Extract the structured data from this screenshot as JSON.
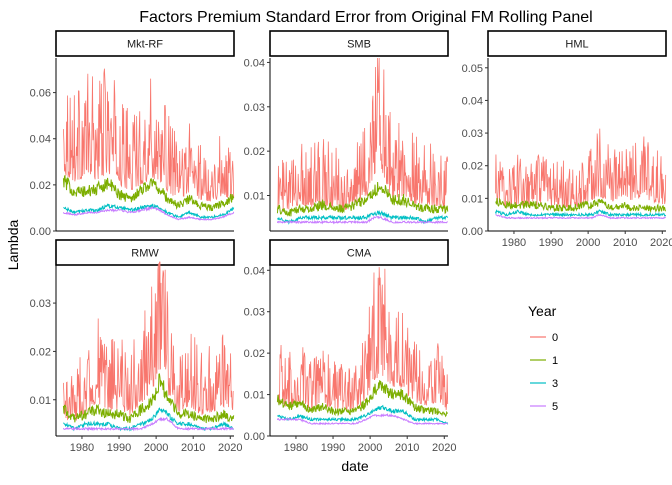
{
  "chart_data": {
    "type": "line",
    "title": "Factors Premium Standard Error from Original FM Rolling Panel",
    "xlabel": "date",
    "ylabel": "Lambda",
    "xlim": [
      1973,
      2021
    ],
    "x_ticks": [
      "1980",
      "1990",
      "2000",
      "2010",
      "2020"
    ],
    "grid": false,
    "legend": {
      "title": "Year",
      "position": "right",
      "entries": [
        "0",
        "1",
        "3",
        "5"
      ],
      "colors": [
        "#F8766D",
        "#7CAE00",
        "#00BFC4",
        "#C77CFF"
      ]
    },
    "panels": [
      {
        "name": "Mkt-RF",
        "ylim": [
          0,
          0.075
        ],
        "y_ticks": [
          "0.00",
          "0.02",
          "0.04",
          "0.06"
        ],
        "series": [
          {
            "name": "0",
            "x": [
              1975,
              1978,
              1981,
              1984,
              1987,
              1990,
              1993,
              1996,
              1999,
              2001,
              2003,
              2006,
              2009,
              2012,
              2015,
              2018,
              2021
            ],
            "y": [
              0.037,
              0.032,
              0.035,
              0.033,
              0.038,
              0.03,
              0.026,
              0.03,
              0.034,
              0.032,
              0.026,
              0.02,
              0.025,
              0.02,
              0.019,
              0.022,
              0.021
            ]
          },
          {
            "name": "1",
            "x": [
              1975,
              1978,
              1981,
              1984,
              1987,
              1990,
              1993,
              1996,
              1999,
              2001,
              2003,
              2006,
              2009,
              2012,
              2015,
              2018,
              2021
            ],
            "y": [
              0.022,
              0.017,
              0.017,
              0.018,
              0.021,
              0.016,
              0.014,
              0.018,
              0.021,
              0.018,
              0.014,
              0.011,
              0.014,
              0.011,
              0.01,
              0.012,
              0.015
            ]
          },
          {
            "name": "3",
            "x": [
              1975,
              1978,
              1981,
              1984,
              1987,
              1990,
              1993,
              1996,
              1999,
              2001,
              2003,
              2006,
              2009,
              2012,
              2015,
              2018,
              2021
            ],
            "y": [
              0.01,
              0.008,
              0.009,
              0.009,
              0.011,
              0.01,
              0.009,
              0.01,
              0.011,
              0.01,
              0.008,
              0.006,
              0.008,
              0.006,
              0.006,
              0.007,
              0.01
            ]
          },
          {
            "name": "5",
            "x": [
              1975,
              1978,
              1981,
              1984,
              1987,
              1990,
              1993,
              1996,
              1999,
              2001,
              2003,
              2006,
              2009,
              2012,
              2015,
              2018,
              2021
            ],
            "y": [
              0.008,
              0.007,
              0.008,
              0.008,
              0.009,
              0.009,
              0.008,
              0.009,
              0.01,
              0.009,
              0.007,
              0.005,
              0.006,
              0.005,
              0.005,
              0.006,
              0.008
            ]
          }
        ]
      },
      {
        "name": "SMB",
        "ylim": [
          0.002,
          0.041
        ],
        "y_ticks": [
          "0.01",
          "0.02",
          "0.03",
          "0.04"
        ],
        "series": [
          {
            "name": "0",
            "x": [
              1975,
              1978,
              1981,
              1984,
              1987,
              1990,
              1993,
              1996,
              1999,
              2001,
              2003,
              2006,
              2009,
              2012,
              2015,
              2018,
              2021
            ],
            "y": [
              0.01,
              0.009,
              0.012,
              0.011,
              0.012,
              0.011,
              0.01,
              0.011,
              0.014,
              0.022,
              0.024,
              0.013,
              0.015,
              0.012,
              0.012,
              0.011,
              0.01
            ]
          },
          {
            "name": "1",
            "x": [
              1975,
              1978,
              1981,
              1984,
              1987,
              1990,
              1993,
              1996,
              1999,
              2001,
              2003,
              2006,
              2009,
              2012,
              2015,
              2018,
              2021
            ],
            "y": [
              0.007,
              0.006,
              0.007,
              0.007,
              0.008,
              0.007,
              0.007,
              0.008,
              0.009,
              0.011,
              0.012,
              0.009,
              0.009,
              0.008,
              0.007,
              0.007,
              0.007
            ]
          },
          {
            "name": "3",
            "x": [
              1975,
              1978,
              1981,
              1984,
              1987,
              1990,
              1993,
              1996,
              1999,
              2001,
              2003,
              2006,
              2009,
              2012,
              2015,
              2018,
              2021
            ],
            "y": [
              0.005,
              0.004,
              0.005,
              0.005,
              0.005,
              0.005,
              0.005,
              0.005,
              0.005,
              0.006,
              0.006,
              0.005,
              0.005,
              0.005,
              0.004,
              0.005,
              0.005
            ]
          },
          {
            "name": "5",
            "x": [
              1975,
              1978,
              1981,
              1984,
              1987,
              1990,
              1993,
              1996,
              1999,
              2001,
              2003,
              2006,
              2009,
              2012,
              2015,
              2018,
              2021
            ],
            "y": [
              0.004,
              0.004,
              0.004,
              0.004,
              0.004,
              0.004,
              0.004,
              0.004,
              0.004,
              0.005,
              0.005,
              0.004,
              0.004,
              0.004,
              0.004,
              0.004,
              0.004
            ]
          }
        ]
      },
      {
        "name": "HML",
        "ylim": [
          0,
          0.053
        ],
        "y_ticks": [
          "0.00",
          "0.01",
          "0.02",
          "0.03",
          "0.04",
          "0.05"
        ],
        "series": [
          {
            "name": "0",
            "x": [
              1975,
              1978,
              1981,
              1984,
              1987,
              1990,
              1993,
              1996,
              1999,
              2001,
              2003,
              2006,
              2009,
              2012,
              2015,
              2018,
              2021
            ],
            "y": [
              0.013,
              0.011,
              0.012,
              0.011,
              0.012,
              0.011,
              0.011,
              0.01,
              0.012,
              0.014,
              0.016,
              0.013,
              0.015,
              0.014,
              0.015,
              0.013,
              0.012
            ]
          },
          {
            "name": "1",
            "x": [
              1975,
              1978,
              1981,
              1984,
              1987,
              1990,
              1993,
              1996,
              1999,
              2001,
              2003,
              2006,
              2009,
              2012,
              2015,
              2018,
              2021
            ],
            "y": [
              0.009,
              0.008,
              0.008,
              0.008,
              0.008,
              0.007,
              0.007,
              0.007,
              0.008,
              0.008,
              0.009,
              0.007,
              0.008,
              0.007,
              0.007,
              0.007,
              0.007
            ]
          },
          {
            "name": "3",
            "x": [
              1975,
              1978,
              1981,
              1984,
              1987,
              1990,
              1993,
              1996,
              1999,
              2001,
              2003,
              2006,
              2009,
              2012,
              2015,
              2018,
              2021
            ],
            "y": [
              0.006,
              0.005,
              0.006,
              0.005,
              0.005,
              0.005,
              0.005,
              0.005,
              0.005,
              0.005,
              0.006,
              0.005,
              0.005,
              0.005,
              0.005,
              0.005,
              0.005
            ]
          },
          {
            "name": "5",
            "x": [
              1975,
              1978,
              1981,
              1984,
              1987,
              1990,
              1993,
              1996,
              1999,
              2001,
              2003,
              2006,
              2009,
              2012,
              2015,
              2018,
              2021
            ],
            "y": [
              0.005,
              0.004,
              0.004,
              0.004,
              0.004,
              0.004,
              0.004,
              0.004,
              0.004,
              0.004,
              0.005,
              0.004,
              0.004,
              0.004,
              0.004,
              0.004,
              0.004
            ]
          }
        ]
      },
      {
        "name": "RMW",
        "ylim": [
          0.0025,
          0.0385
        ],
        "y_ticks": [
          "0.01",
          "0.02",
          "0.03"
        ],
        "series": [
          {
            "name": "0",
            "x": [
              1975,
              1978,
              1981,
              1984,
              1987,
              1990,
              1993,
              1996,
              1999,
              2001,
              2003,
              2006,
              2009,
              2012,
              2015,
              2018,
              2021
            ],
            "y": [
              0.009,
              0.008,
              0.011,
              0.014,
              0.011,
              0.012,
              0.01,
              0.014,
              0.017,
              0.025,
              0.017,
              0.011,
              0.013,
              0.01,
              0.011,
              0.013,
              0.01
            ]
          },
          {
            "name": "1",
            "x": [
              1975,
              1978,
              1981,
              1984,
              1987,
              1990,
              1993,
              1996,
              1999,
              2001,
              2003,
              2006,
              2009,
              2012,
              2015,
              2018,
              2021
            ],
            "y": [
              0.008,
              0.006,
              0.007,
              0.008,
              0.007,
              0.007,
              0.006,
              0.008,
              0.01,
              0.014,
              0.011,
              0.007,
              0.007,
              0.006,
              0.006,
              0.007,
              0.006
            ]
          },
          {
            "name": "3",
            "x": [
              1975,
              1978,
              1981,
              1984,
              1987,
              1990,
              1993,
              1996,
              1999,
              2001,
              2003,
              2006,
              2009,
              2012,
              2015,
              2018,
              2021
            ],
            "y": [
              0.005,
              0.004,
              0.005,
              0.005,
              0.005,
              0.004,
              0.004,
              0.005,
              0.006,
              0.008,
              0.007,
              0.005,
              0.005,
              0.004,
              0.004,
              0.005,
              0.004
            ]
          },
          {
            "name": "5",
            "x": [
              1975,
              1978,
              1981,
              1984,
              1987,
              1990,
              1993,
              1996,
              1999,
              2001,
              2003,
              2006,
              2009,
              2012,
              2015,
              2018,
              2021
            ],
            "y": [
              0.004,
              0.004,
              0.004,
              0.004,
              0.004,
              0.004,
              0.004,
              0.004,
              0.005,
              0.006,
              0.006,
              0.004,
              0.004,
              0.004,
              0.004,
              0.004,
              0.004
            ]
          }
        ]
      },
      {
        "name": "CMA",
        "ylim": [
          0,
          0.042
        ],
        "y_ticks": [
          "0.00",
          "0.01",
          "0.02",
          "0.03",
          "0.04"
        ],
        "series": [
          {
            "name": "0",
            "x": [
              1975,
              1978,
              1981,
              1984,
              1987,
              1990,
              1993,
              1996,
              1999,
              2001,
              2003,
              2006,
              2009,
              2012,
              2015,
              2018,
              2021
            ],
            "y": [
              0.012,
              0.01,
              0.012,
              0.009,
              0.011,
              0.01,
              0.009,
              0.009,
              0.013,
              0.02,
              0.022,
              0.018,
              0.016,
              0.012,
              0.011,
              0.012,
              0.008
            ]
          },
          {
            "name": "1",
            "x": [
              1975,
              1978,
              1981,
              1984,
              1987,
              1990,
              1993,
              1996,
              1999,
              2001,
              2003,
              2006,
              2009,
              2012,
              2015,
              2018,
              2021
            ],
            "y": [
              0.009,
              0.007,
              0.008,
              0.006,
              0.007,
              0.006,
              0.006,
              0.006,
              0.008,
              0.011,
              0.012,
              0.01,
              0.01,
              0.007,
              0.006,
              0.006,
              0.005
            ]
          },
          {
            "name": "3",
            "x": [
              1975,
              1978,
              1981,
              1984,
              1987,
              1990,
              1993,
              1996,
              1999,
              2001,
              2003,
              2006,
              2009,
              2012,
              2015,
              2018,
              2021
            ],
            "y": [
              0.005,
              0.004,
              0.005,
              0.004,
              0.004,
              0.004,
              0.004,
              0.004,
              0.005,
              0.006,
              0.007,
              0.006,
              0.006,
              0.004,
              0.004,
              0.004,
              0.003
            ]
          },
          {
            "name": "5",
            "x": [
              1975,
              1978,
              1981,
              1984,
              1987,
              1990,
              1993,
              1996,
              1999,
              2001,
              2003,
              2006,
              2009,
              2012,
              2015,
              2018,
              2021
            ],
            "y": [
              0.004,
              0.004,
              0.004,
              0.003,
              0.003,
              0.003,
              0.003,
              0.003,
              0.004,
              0.005,
              0.005,
              0.005,
              0.004,
              0.003,
              0.003,
              0.003,
              0.003
            ]
          }
        ]
      }
    ]
  }
}
